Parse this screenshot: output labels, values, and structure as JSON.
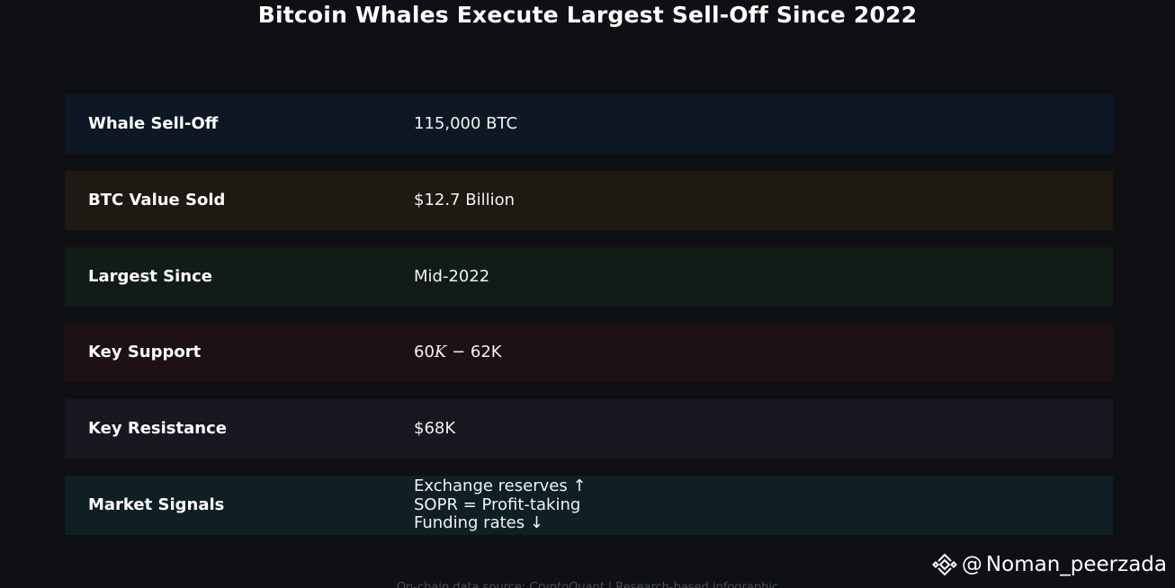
{
  "title": "Bitcoin Whales Execute Largest Sell-Off Since 2022",
  "rows": [
    {
      "label": "Whale Sell-Off",
      "value": "115,000 BTC",
      "color": "#0e1824"
    },
    {
      "label": "BTC Value Sold",
      "value": "$12.7 Billion",
      "color": "#1e1912"
    },
    {
      "label": "Largest Since",
      "value": "Mid-2022",
      "color": "#111c17"
    },
    {
      "label": "Key Support",
      "value_parts": [
        "60",
        "K",
        " − 62K"
      ],
      "color": "#1d1115"
    },
    {
      "label": "Key Resistance",
      "value": "$68K",
      "color": "#18171f"
    },
    {
      "label": "Market Signals",
      "value_lines": [
        "Exchange reserves ↑",
        "SOPR = Profit-taking",
        "Funding rates ↓"
      ],
      "color": "#0f1f24"
    }
  ],
  "footer": {
    "source_prefix": "On-chain data source: ",
    "source_name": "CryptoQuant",
    "source_suffix": " | Research-based infographic"
  },
  "watermark": {
    "icon": "binance-logo-icon",
    "at": "@",
    "handle": "Noman_peerzada"
  }
}
